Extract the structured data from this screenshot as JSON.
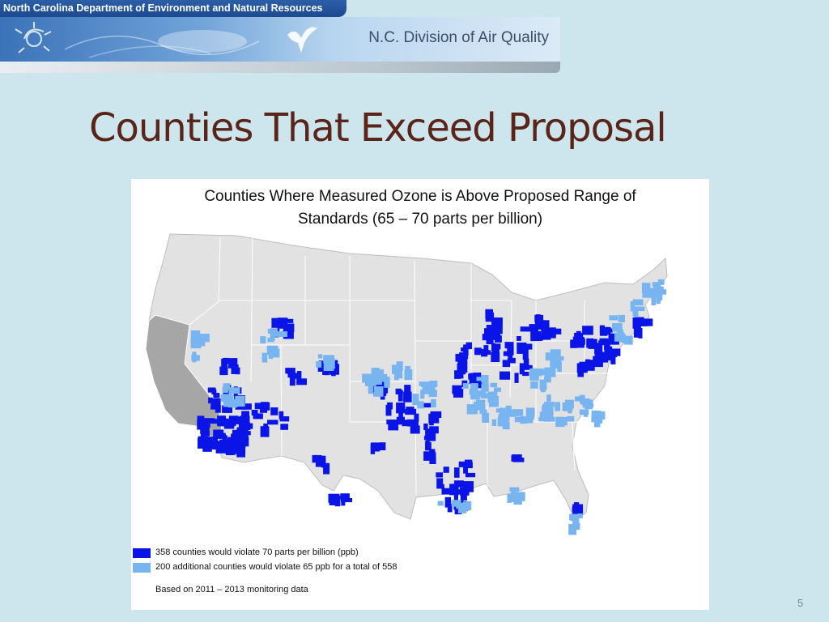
{
  "header": {
    "department": "North Carolina Department of Environment and Natural Resources",
    "division": "N.C. Division of Air Quality"
  },
  "slide": {
    "title": "Counties That Exceed Proposal",
    "page_number": "5"
  },
  "map": {
    "title_line1": "Counties Where Measured Ozone is Above Proposed Range of",
    "title_line2": "Standards (65 – 70 parts per billion)",
    "region": "United States (contiguous)",
    "colors": {
      "violate_70": "#0a14e6",
      "violate_65": "#78b4f0",
      "california": "#a6a6a6",
      "land": "#e2e2e2",
      "state_border": "#ffffff"
    },
    "legend": [
      {
        "label": "358 counties would violate 70 parts per billion (ppb)",
        "color": "#0a14e6"
      },
      {
        "label": "200 additional counties would violate 65 ppb for a total of 558",
        "color": "#78b4f0"
      }
    ],
    "note": "Based on 2011 – 2013 monitoring data"
  }
}
